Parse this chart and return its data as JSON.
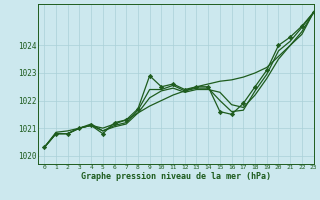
{
  "title": "",
  "xlabel": "Graphe pression niveau de la mer (hPa)",
  "xlim": [
    -0.5,
    23
  ],
  "ylim": [
    1019.7,
    1025.5
  ],
  "yticks": [
    1020,
    1021,
    1022,
    1023,
    1024
  ],
  "xticks": [
    0,
    1,
    2,
    3,
    4,
    5,
    6,
    7,
    8,
    9,
    10,
    11,
    12,
    13,
    14,
    15,
    16,
    17,
    18,
    19,
    20,
    21,
    22,
    23
  ],
  "background_color": "#cce8ee",
  "grid_color": "#aad0d8",
  "line_color": "#1e5c1e",
  "series_markers": [
    1020.3,
    1020.8,
    1020.8,
    1021.0,
    1021.1,
    1020.8,
    1021.2,
    1021.3,
    1021.7,
    1022.9,
    1022.5,
    1022.6,
    1022.4,
    1022.5,
    1022.5,
    1021.6,
    1021.5,
    1021.9,
    1022.5,
    1023.1,
    1024.0,
    1024.3,
    1024.7,
    1025.2
  ],
  "series_smooth1": [
    1020.3,
    1020.8,
    1020.8,
    1021.0,
    1021.15,
    1020.9,
    1021.05,
    1021.15,
    1021.55,
    1022.1,
    1022.35,
    1022.45,
    1022.3,
    1022.4,
    1022.4,
    1022.3,
    1021.85,
    1021.75,
    1022.2,
    1022.8,
    1023.5,
    1024.0,
    1024.5,
    1025.2
  ],
  "series_smooth2": [
    1020.3,
    1020.8,
    1020.8,
    1021.0,
    1021.1,
    1020.9,
    1021.1,
    1021.2,
    1021.65,
    1022.4,
    1022.4,
    1022.55,
    1022.35,
    1022.45,
    1022.45,
    1022.0,
    1021.6,
    1021.65,
    1022.35,
    1022.95,
    1023.8,
    1024.15,
    1024.65,
    1025.2
  ],
  "series_straight": [
    1020.3,
    1020.85,
    1020.9,
    1021.0,
    1021.1,
    1021.0,
    1021.15,
    1021.3,
    1021.55,
    1021.8,
    1022.0,
    1022.2,
    1022.35,
    1022.5,
    1022.6,
    1022.7,
    1022.75,
    1022.85,
    1023.0,
    1023.2,
    1023.6,
    1024.0,
    1024.4,
    1025.2
  ]
}
